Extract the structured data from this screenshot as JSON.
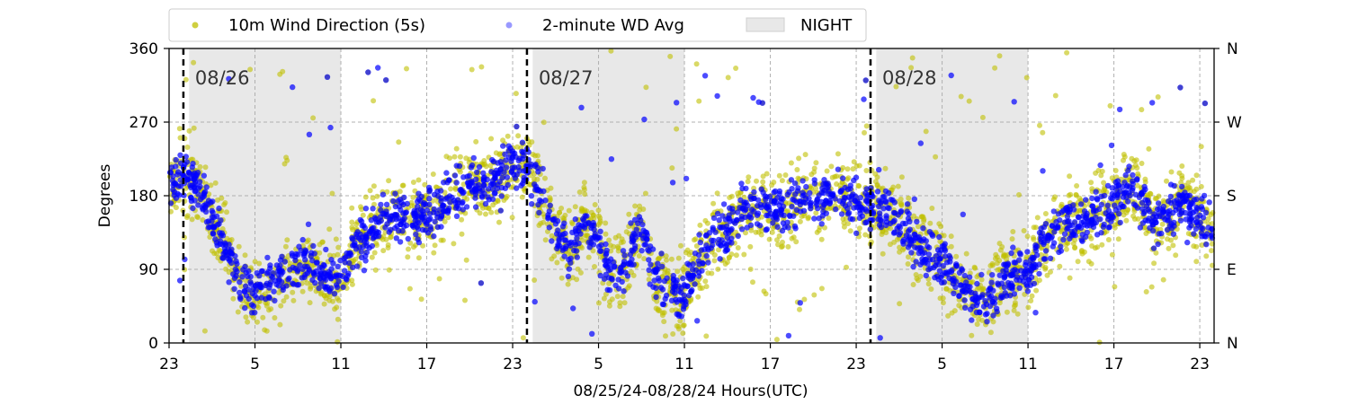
{
  "chart_data": {
    "type": "scatter",
    "xlabel": "08/25/24-08/28/24  Hours(UTC)",
    "ylabel": "Degrees",
    "ylim": [
      0,
      360
    ],
    "xlim_hours": [
      0,
      73
    ],
    "y_ticks": [
      0,
      90,
      180,
      270,
      360
    ],
    "y_tick_labels": [
      "0",
      "90",
      "180",
      "270",
      "360"
    ],
    "y2_tick_labels": [
      "N",
      "E",
      "S",
      "W",
      "N"
    ],
    "x_ticks_hours": [
      0,
      6,
      12,
      18,
      24,
      30,
      36,
      42,
      48,
      54,
      60,
      66,
      72
    ],
    "x_tick_labels": [
      "23",
      "5",
      "11",
      "17",
      "23",
      "5",
      "11",
      "17",
      "23",
      "5",
      "11",
      "17",
      "23"
    ],
    "grid": true,
    "legend_position": "top",
    "day_dividers": [
      {
        "hour": 1,
        "label": "08/26"
      },
      {
        "hour": 25,
        "label": "08/27"
      },
      {
        "hour": 49,
        "label": "08/28"
      }
    ],
    "night_bands": [
      {
        "start": 1.4,
        "end": 12.0
      },
      {
        "start": 25.4,
        "end": 36.0
      },
      {
        "start": 49.4,
        "end": 60.0
      }
    ],
    "night_color": "#e8e8e8",
    "series": [
      {
        "name": "10m Wind Direction (5s)",
        "color": "#bfbf00",
        "profile": [
          [
            0,
            185
          ],
          [
            0.5,
            210
          ],
          [
            1,
            205
          ],
          [
            1.5,
            200
          ],
          [
            2,
            190
          ],
          [
            2.5,
            175
          ],
          [
            4,
            120
          ],
          [
            5,
            70
          ],
          [
            6,
            55
          ],
          [
            7,
            70
          ],
          [
            8,
            80
          ],
          [
            9,
            90
          ],
          [
            10,
            95
          ],
          [
            11,
            85
          ],
          [
            12,
            80
          ],
          [
            13,
            110
          ],
          [
            14,
            140
          ],
          [
            15,
            150
          ],
          [
            16,
            160
          ],
          [
            17,
            150
          ],
          [
            18,
            160
          ],
          [
            19,
            170
          ],
          [
            20,
            180
          ],
          [
            21,
            195
          ],
          [
            22,
            190
          ],
          [
            23,
            200
          ],
          [
            24,
            220
          ],
          [
            25,
            215
          ],
          [
            26,
            180
          ],
          [
            27,
            140
          ],
          [
            28,
            110
          ],
          [
            29,
            150
          ],
          [
            30,
            120
          ],
          [
            31,
            80
          ],
          [
            32,
            100
          ],
          [
            33,
            140
          ],
          [
            34,
            80
          ],
          [
            35,
            60
          ],
          [
            36,
            60
          ],
          [
            37,
            100
          ],
          [
            38,
            130
          ],
          [
            39,
            140
          ],
          [
            40,
            160
          ],
          [
            41,
            170
          ],
          [
            42,
            165
          ],
          [
            43,
            160
          ],
          [
            44,
            170
          ],
          [
            45,
            175
          ],
          [
            46,
            180
          ],
          [
            47,
            180
          ],
          [
            48,
            175
          ],
          [
            49,
            170
          ],
          [
            50,
            160
          ],
          [
            51,
            150
          ],
          [
            52,
            130
          ],
          [
            53,
            110
          ],
          [
            54,
            100
          ],
          [
            55,
            80
          ],
          [
            56,
            60
          ],
          [
            57,
            55
          ],
          [
            58,
            70
          ],
          [
            59,
            85
          ],
          [
            60,
            90
          ],
          [
            61,
            120
          ],
          [
            62,
            140
          ],
          [
            63,
            150
          ],
          [
            64,
            150
          ],
          [
            65,
            160
          ],
          [
            66,
            170
          ],
          [
            67,
            190
          ],
          [
            68,
            170
          ],
          [
            69,
            150
          ],
          [
            70,
            160
          ],
          [
            71,
            170
          ],
          [
            72,
            150
          ],
          [
            72.9,
            140
          ]
        ],
        "spread": 35,
        "outlier_rate": 0.05
      },
      {
        "name": "2-minute WD Avg",
        "color": "#0000ff",
        "profile": [
          [
            0,
            185
          ],
          [
            0.5,
            205
          ],
          [
            1,
            200
          ],
          [
            1.5,
            195
          ],
          [
            2,
            185
          ],
          [
            2.5,
            175
          ],
          [
            4,
            120
          ],
          [
            5,
            70
          ],
          [
            6,
            60
          ],
          [
            7,
            75
          ],
          [
            8,
            85
          ],
          [
            9,
            90
          ],
          [
            10,
            95
          ],
          [
            11,
            85
          ],
          [
            12,
            85
          ],
          [
            13,
            110
          ],
          [
            14,
            140
          ],
          [
            15,
            150
          ],
          [
            16,
            160
          ],
          [
            17,
            150
          ],
          [
            18,
            160
          ],
          [
            19,
            170
          ],
          [
            20,
            180
          ],
          [
            21,
            195
          ],
          [
            22,
            190
          ],
          [
            23,
            200
          ],
          [
            24,
            220
          ],
          [
            25,
            215
          ],
          [
            26,
            180
          ],
          [
            27,
            140
          ],
          [
            28,
            110
          ],
          [
            29,
            150
          ],
          [
            30,
            120
          ],
          [
            31,
            80
          ],
          [
            32,
            100
          ],
          [
            33,
            140
          ],
          [
            34,
            80
          ],
          [
            35,
            60
          ],
          [
            36,
            60
          ],
          [
            37,
            100
          ],
          [
            38,
            130
          ],
          [
            39,
            140
          ],
          [
            40,
            160
          ],
          [
            41,
            170
          ],
          [
            42,
            165
          ],
          [
            43,
            160
          ],
          [
            44,
            170
          ],
          [
            45,
            175
          ],
          [
            46,
            180
          ],
          [
            47,
            180
          ],
          [
            48,
            175
          ],
          [
            49,
            170
          ],
          [
            50,
            160
          ],
          [
            51,
            150
          ],
          [
            52,
            130
          ],
          [
            53,
            110
          ],
          [
            54,
            100
          ],
          [
            55,
            80
          ],
          [
            56,
            60
          ],
          [
            57,
            55
          ],
          [
            58,
            70
          ],
          [
            59,
            85
          ],
          [
            60,
            90
          ],
          [
            61,
            120
          ],
          [
            62,
            140
          ],
          [
            63,
            150
          ],
          [
            64,
            150
          ],
          [
            65,
            160
          ],
          [
            66,
            170
          ],
          [
            67,
            190
          ],
          [
            68,
            170
          ],
          [
            69,
            150
          ],
          [
            70,
            160
          ],
          [
            71,
            170
          ],
          [
            72,
            150
          ],
          [
            72.9,
            140
          ]
        ],
        "spread": 22,
        "outlier_rate": 0.03
      }
    ],
    "legend": [
      {
        "label": "10m Wind Direction (5s)",
        "marker": "dot",
        "color": "#bfbf00"
      },
      {
        "label": "2-minute WD Avg",
        "marker": "dot",
        "color": "#0000ff"
      },
      {
        "label": "NIGHT",
        "marker": "patch",
        "color": "#e8e8e8"
      }
    ]
  }
}
